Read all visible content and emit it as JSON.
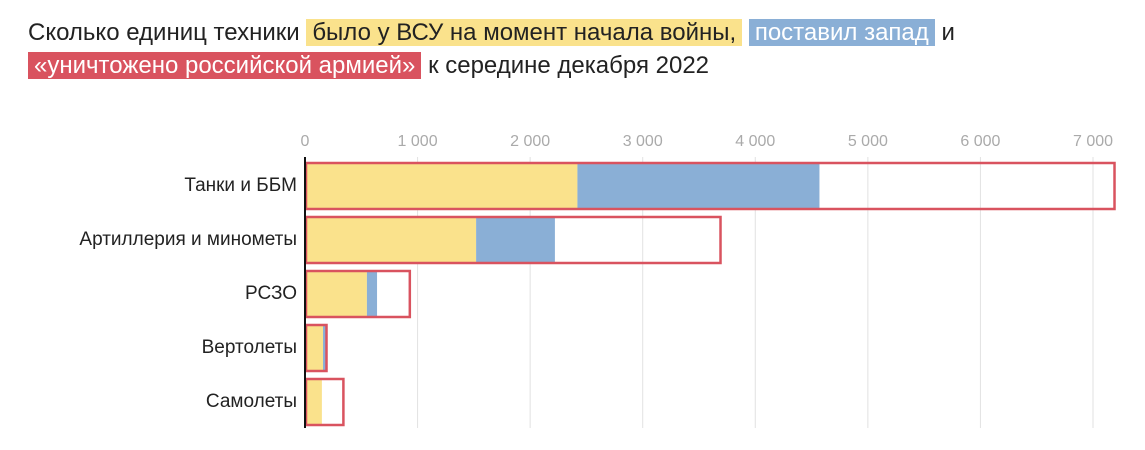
{
  "chart_data": {
    "type": "bar",
    "title_parts": [
      "Сколько единиц техники",
      "и",
      "к середине декабря 2022"
    ],
    "categories": [
      "Танки и ББМ",
      "Артиллерия и минометы",
      "РСЗО",
      "Вертолеты",
      "Самолеты"
    ],
    "series": [
      {
        "name": "было у ВСУ на момент начала войны,",
        "color": "#fae28c",
        "values": [
          2420,
          1520,
          550,
          160,
          150
        ]
      },
      {
        "name": "поставил запад",
        "color": "#8aafd6",
        "values": [
          2150,
          700,
          90,
          35,
          0
        ]
      },
      {
        "name": "«уничтожено российской армией»",
        "color": "#d9535f",
        "values": [
          7200,
          3700,
          940,
          200,
          350
        ]
      }
    ],
    "xlim": [
      0,
      7000
    ],
    "xticks": [
      0,
      {
        "value": 1000,
        "label": "1 000"
      },
      {
        "value": 2000,
        "label": "2 000"
      },
      {
        "value": 3000,
        "label": "3 000"
      },
      {
        "value": 4000,
        "label": "4 000"
      },
      {
        "value": 5000,
        "label": "5 000"
      },
      {
        "value": 6000,
        "label": "6 000"
      },
      {
        "value": 7000,
        "label": "7 000"
      }
    ],
    "grid": true
  }
}
